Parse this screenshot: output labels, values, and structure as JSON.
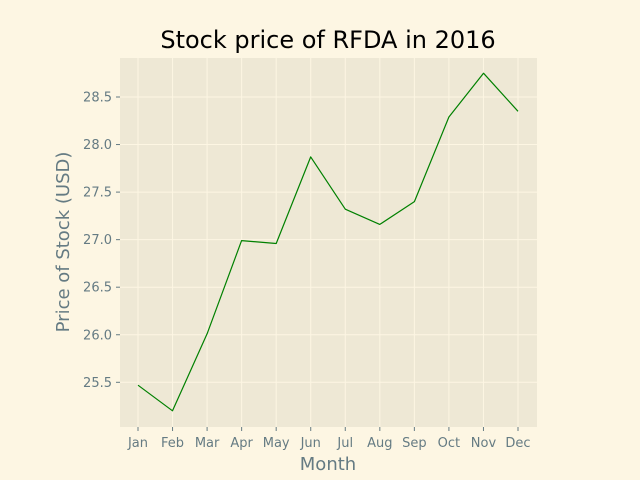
{
  "chart_data": {
    "type": "line",
    "title": "Stock price of RFDA in 2016",
    "xlabel": "Month",
    "ylabel": "Price of Stock (USD)",
    "categories": [
      "Jan",
      "Feb",
      "Mar",
      "Apr",
      "May",
      "Jun",
      "Jul",
      "Aug",
      "Sep",
      "Oct",
      "Nov",
      "Dec"
    ],
    "series": [
      {
        "values": [
          25.47,
          25.2,
          26.01,
          26.99,
          26.96,
          27.87,
          27.32,
          27.16,
          27.4,
          28.29,
          28.75,
          28.35
        ]
      }
    ],
    "ylim": [
      25.03,
      28.91
    ],
    "yticks": [
      25.5,
      26.0,
      26.5,
      27.0,
      27.5,
      28.0,
      28.5
    ],
    "ytick_labels": [
      "25.5",
      "26.0",
      "26.5",
      "27.0",
      "27.5",
      "28.0",
      "28.5"
    ],
    "grid": true,
    "legend": "none",
    "colors": {
      "background": "#fdf6e3",
      "plot_background": "#eee8d5",
      "grid": "#fdf6e3",
      "line": "#008000",
      "text": "#657b83",
      "title": "#000000"
    }
  }
}
